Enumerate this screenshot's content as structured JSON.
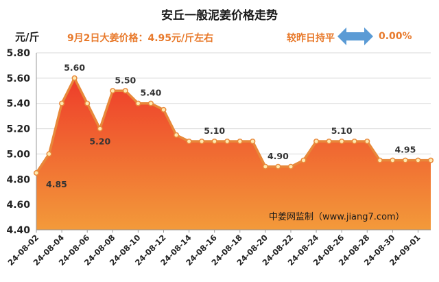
{
  "header": {
    "title": "安丘一般泥姜价格走势",
    "unit": "元/斤",
    "price_info": "9月2日大姜价格：4.95元/斤左右",
    "compare_label": "较昨日持平",
    "compare_icon": "double-arrow-icon",
    "compare_pct": "0.00%"
  },
  "source": "中姜网监制（www.jiang7.com）",
  "colors": {
    "line": "#e8883a",
    "fill_top": "#ee3d2a",
    "fill_bottom": "#f39a3a",
    "marker_fill": "#ffe9b0",
    "accent_text": "#e87a2c",
    "arrow": "#5b9bd5"
  },
  "chart_data": {
    "type": "area",
    "title": "安丘一般泥姜价格走势",
    "ylabel": "元/斤",
    "xlabel": "",
    "ylim": [
      4.4,
      5.8
    ],
    "yticks": [
      "4.40",
      "4.60",
      "4.80",
      "5.00",
      "5.20",
      "5.40",
      "5.60",
      "5.80"
    ],
    "x": [
      "24-08-02",
      "24-08-03",
      "24-08-04",
      "24-08-05",
      "24-08-06",
      "24-08-07",
      "24-08-08",
      "24-08-09",
      "24-08-10",
      "24-08-11",
      "24-08-12",
      "24-08-13",
      "24-08-14",
      "24-08-15",
      "24-08-16",
      "24-08-17",
      "24-08-18",
      "24-08-19",
      "24-08-20",
      "24-08-21",
      "24-08-22",
      "24-08-23",
      "24-08-24",
      "24-08-25",
      "24-08-26",
      "24-08-27",
      "24-08-28",
      "24-08-29",
      "24-08-30",
      "24-08-31",
      "24-09-01",
      "24-09-02"
    ],
    "xtick_labels": [
      "24-08-02",
      "24-08-04",
      "24-08-06",
      "24-08-08",
      "24-08-10",
      "24-08-12",
      "24-08-14",
      "24-08-16",
      "24-08-18",
      "24-08-20",
      "24-08-22",
      "24-08-24",
      "24-08-26",
      "24-08-28",
      "24-08-30",
      "24-09-01"
    ],
    "values": [
      4.85,
      5.0,
      5.4,
      5.6,
      5.4,
      5.2,
      5.5,
      5.5,
      5.4,
      5.4,
      5.35,
      5.15,
      5.1,
      5.1,
      5.1,
      5.1,
      5.1,
      5.1,
      4.9,
      4.9,
      4.9,
      4.95,
      5.1,
      5.1,
      5.1,
      5.1,
      5.1,
      4.95,
      4.95,
      4.95,
      4.95,
      4.95
    ],
    "data_labels": [
      {
        "x": "24-08-02",
        "text": "4.85"
      },
      {
        "x": "24-08-05",
        "text": "5.60"
      },
      {
        "x": "24-08-07",
        "text": "5.20"
      },
      {
        "x": "24-08-09",
        "text": "5.50"
      },
      {
        "x": "24-08-11",
        "text": "5.40"
      },
      {
        "x": "24-08-16",
        "text": "5.10"
      },
      {
        "x": "24-08-21",
        "text": "4.90"
      },
      {
        "x": "24-08-26",
        "text": "5.10"
      },
      {
        "x": "24-08-31",
        "text": "4.95"
      }
    ],
    "grid": true,
    "legend": "none"
  }
}
